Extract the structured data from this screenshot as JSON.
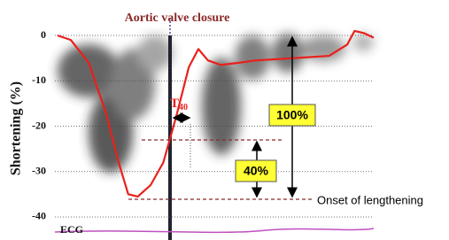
{
  "chart_data": {
    "type": "line",
    "title": "Aortic valve closure",
    "y_label": "Shortening (%)",
    "x": [
      0.8,
      5,
      10.6,
      16,
      20,
      23,
      26,
      30,
      34,
      38,
      42,
      45,
      48,
      52,
      58,
      63,
      75,
      86,
      91.7,
      94,
      97,
      100
    ],
    "series": [
      {
        "color": "#e8201c",
        "values": [
          0,
          -1,
          -6,
          -17,
          -28,
          -35,
          -35.5,
          -33,
          -28,
          -18,
          -7,
          -3,
          -5.5,
          -6.5,
          -6,
          -5.5,
          -5,
          -4.5,
          -2,
          1,
          0.5,
          -0.5
        ]
      }
    ],
    "xlim": [
      0,
      100
    ],
    "ylim": [
      -45,
      5
    ],
    "yticks": [
      0,
      -10,
      -20,
      -30,
      -40
    ],
    "grid": true,
    "annotations": {
      "t_main": "T",
      "t_sub": "40",
      "full": "100%",
      "part": "40%",
      "onset": "Onset of lengthening",
      "ecg": "ECG"
    }
  }
}
